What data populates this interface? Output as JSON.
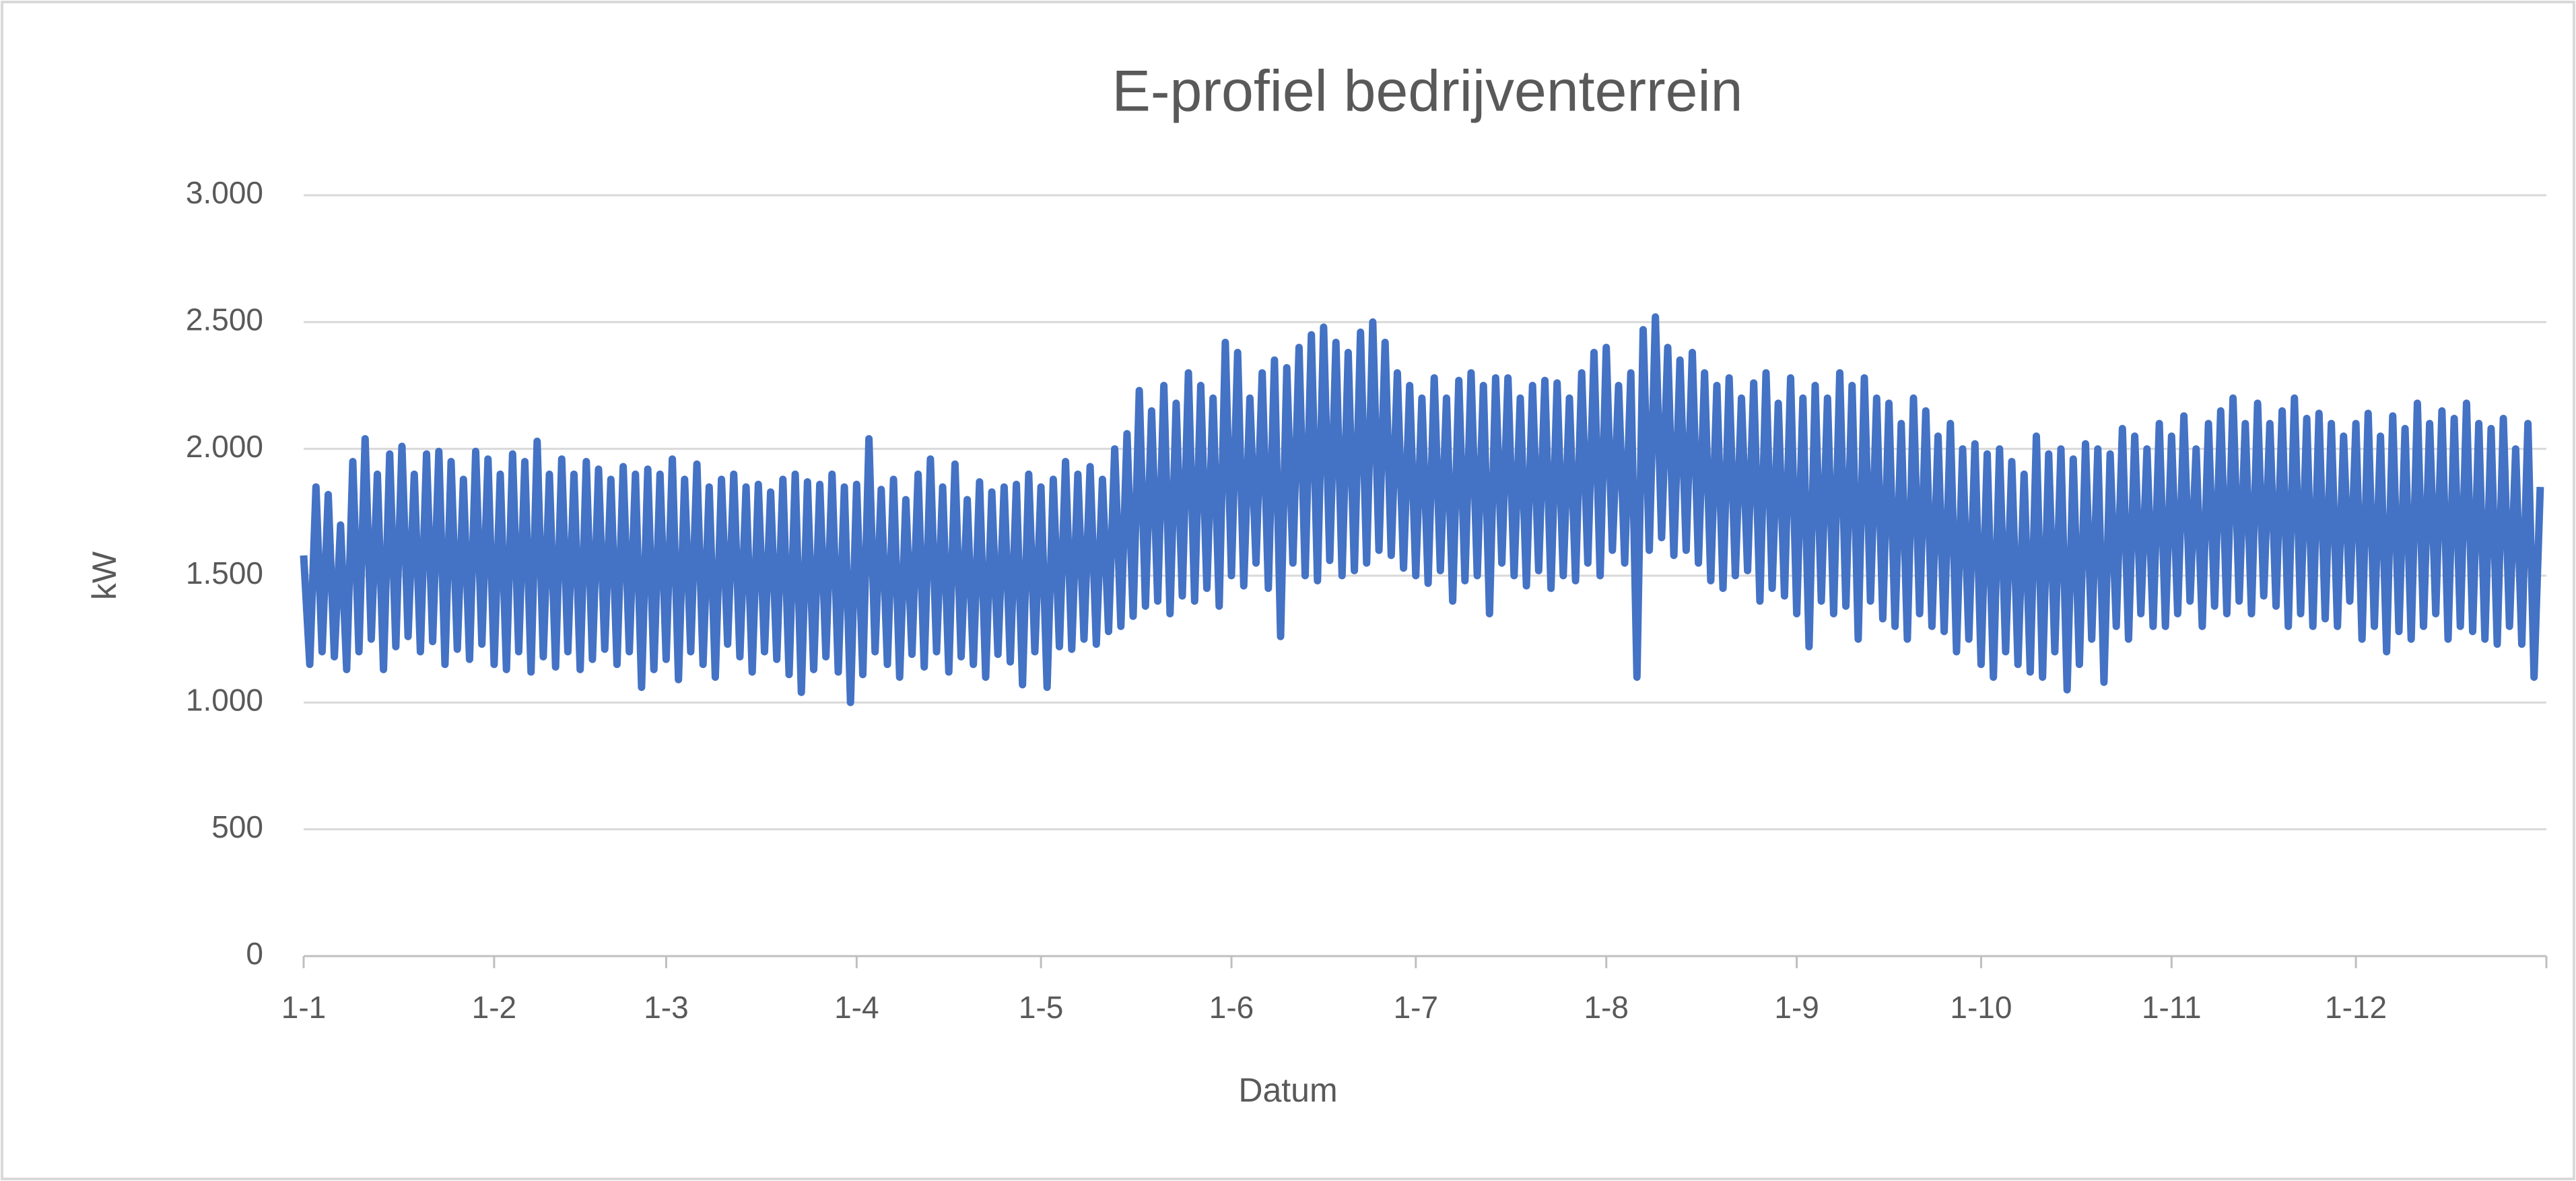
{
  "chart_data": {
    "type": "line",
    "title": "E-profiel bedrijventerrein",
    "x_label": "Datum",
    "y_label": "kW",
    "color": "#4472c4",
    "grid": true,
    "xlim": [
      0,
      365
    ],
    "xticks": [
      {
        "value": 0,
        "label": "1-1"
      },
      {
        "value": 31,
        "label": "1-2"
      },
      {
        "value": 59,
        "label": "1-3"
      },
      {
        "value": 90,
        "label": "1-4"
      },
      {
        "value": 120,
        "label": "1-5"
      },
      {
        "value": 151,
        "label": "1-6"
      },
      {
        "value": 181,
        "label": "1-7"
      },
      {
        "value": 212,
        "label": "1-8"
      },
      {
        "value": 243,
        "label": "1-9"
      },
      {
        "value": 273,
        "label": "1-10"
      },
      {
        "value": 304,
        "label": "1-11"
      },
      {
        "value": 334,
        "label": "1-12"
      }
    ],
    "ylim": [
      0,
      3000
    ],
    "yticks": [
      0,
      500,
      {
        "value": 1000,
        "label": "1.000"
      },
      {
        "value": 1500,
        "label": "1.500"
      },
      {
        "value": 2000,
        "label": "2.000"
      },
      {
        "value": 2500,
        "label": "2.500"
      },
      {
        "value": 3000,
        "label": "3.000"
      }
    ],
    "x": [
      0,
      1,
      2,
      3,
      4,
      5,
      6,
      7,
      8,
      9,
      10,
      11,
      12,
      13,
      14,
      15,
      16,
      17,
      18,
      19,
      20,
      21,
      22,
      23,
      24,
      25,
      26,
      27,
      28,
      29,
      30,
      31,
      32,
      33,
      34,
      35,
      36,
      37,
      38,
      39,
      40,
      41,
      42,
      43,
      44,
      45,
      46,
      47,
      48,
      49,
      50,
      51,
      52,
      53,
      54,
      55,
      56,
      57,
      58,
      59,
      60,
      61,
      62,
      63,
      64,
      65,
      66,
      67,
      68,
      69,
      70,
      71,
      72,
      73,
      74,
      75,
      76,
      77,
      78,
      79,
      80,
      81,
      82,
      83,
      84,
      85,
      86,
      87,
      88,
      89,
      90,
      91,
      92,
      93,
      94,
      95,
      96,
      97,
      98,
      99,
      100,
      101,
      102,
      103,
      104,
      105,
      106,
      107,
      108,
      109,
      110,
      111,
      112,
      113,
      114,
      115,
      116,
      117,
      118,
      119,
      120,
      121,
      122,
      123,
      124,
      125,
      126,
      127,
      128,
      129,
      130,
      131,
      132,
      133,
      134,
      135,
      136,
      137,
      138,
      139,
      140,
      141,
      142,
      143,
      144,
      145,
      146,
      147,
      148,
      149,
      150,
      151,
      152,
      153,
      154,
      155,
      156,
      157,
      158,
      159,
      160,
      161,
      162,
      163,
      164,
      165,
      166,
      167,
      168,
      169,
      170,
      171,
      172,
      173,
      174,
      175,
      176,
      177,
      178,
      179,
      180,
      181,
      182,
      183,
      184,
      185,
      186,
      187,
      188,
      189,
      190,
      191,
      192,
      193,
      194,
      195,
      196,
      197,
      198,
      199,
      200,
      201,
      202,
      203,
      204,
      205,
      206,
      207,
      208,
      209,
      210,
      211,
      212,
      213,
      214,
      215,
      216,
      217,
      218,
      219,
      220,
      221,
      222,
      223,
      224,
      225,
      226,
      227,
      228,
      229,
      230,
      231,
      232,
      233,
      234,
      235,
      236,
      237,
      238,
      239,
      240,
      241,
      242,
      243,
      244,
      245,
      246,
      247,
      248,
      249,
      250,
      251,
      252,
      253,
      254,
      255,
      256,
      257,
      258,
      259,
      260,
      261,
      262,
      263,
      264,
      265,
      266,
      267,
      268,
      269,
      270,
      271,
      272,
      273,
      274,
      275,
      276,
      277,
      278,
      279,
      280,
      281,
      282,
      283,
      284,
      285,
      286,
      287,
      288,
      289,
      290,
      291,
      292,
      293,
      294,
      295,
      296,
      297,
      298,
      299,
      300,
      301,
      302,
      303,
      304,
      305,
      306,
      307,
      308,
      309,
      310,
      311,
      312,
      313,
      314,
      315,
      316,
      317,
      318,
      319,
      320,
      321,
      322,
      323,
      324,
      325,
      326,
      327,
      328,
      329,
      330,
      331,
      332,
      333,
      334,
      335,
      336,
      337,
      338,
      339,
      340,
      341,
      342,
      343,
      344,
      345,
      346,
      347,
      348,
      349,
      350,
      351,
      352,
      353,
      354,
      355,
      356,
      357,
      358,
      359,
      360,
      361,
      362,
      363,
      364
    ],
    "values": [
      1580,
      1150,
      1850,
      1200,
      1820,
      1180,
      1700,
      1130,
      1950,
      1200,
      2040,
      1250,
      1900,
      1130,
      1980,
      1220,
      2010,
      1260,
      1900,
      1200,
      1980,
      1240,
      1990,
      1150,
      1950,
      1210,
      1880,
      1170,
      1990,
      1230,
      1960,
      1150,
      1900,
      1130,
      1980,
      1200,
      1950,
      1120,
      2030,
      1180,
      1900,
      1140,
      1960,
      1200,
      1900,
      1130,
      1950,
      1170,
      1920,
      1210,
      1880,
      1150,
      1930,
      1200,
      1900,
      1060,
      1920,
      1130,
      1900,
      1170,
      1960,
      1090,
      1880,
      1200,
      1940,
      1150,
      1850,
      1100,
      1880,
      1230,
      1900,
      1180,
      1850,
      1120,
      1860,
      1200,
      1830,
      1170,
      1880,
      1110,
      1900,
      1040,
      1870,
      1130,
      1860,
      1180,
      1900,
      1120,
      1850,
      1000,
      1860,
      1110,
      2040,
      1200,
      1840,
      1150,
      1880,
      1100,
      1800,
      1190,
      1900,
      1140,
      1960,
      1200,
      1850,
      1120,
      1940,
      1180,
      1800,
      1150,
      1870,
      1100,
      1830,
      1190,
      1850,
      1160,
      1860,
      1070,
      1900,
      1200,
      1850,
      1060,
      1880,
      1220,
      1950,
      1210,
      1900,
      1250,
      1930,
      1230,
      1880,
      1280,
      2000,
      1300,
      2060,
      1340,
      2230,
      1380,
      2150,
      1400,
      2250,
      1350,
      2180,
      1420,
      2300,
      1400,
      2250,
      1450,
      2200,
      1380,
      2420,
      1500,
      2380,
      1460,
      2200,
      1550,
      2300,
      1450,
      2350,
      1260,
      2320,
      1550,
      2400,
      1500,
      2450,
      1480,
      2480,
      1560,
      2420,
      1500,
      2380,
      1520,
      2460,
      1550,
      2500,
      1600,
      2420,
      1580,
      2300,
      1530,
      2250,
      1500,
      2200,
      1470,
      2280,
      1520,
      2200,
      1400,
      2270,
      1480,
      2300,
      1500,
      2250,
      1350,
      2280,
      1550,
      2280,
      1500,
      2200,
      1460,
      2250,
      1520,
      2270,
      1450,
      2260,
      1500,
      2200,
      1480,
      2300,
      1550,
      2380,
      1500,
      2400,
      1600,
      2250,
      1550,
      2300,
      1100,
      2470,
      1600,
      2520,
      1650,
      2400,
      1580,
      2350,
      1600,
      2380,
      1550,
      2300,
      1480,
      2250,
      1450,
      2280,
      1500,
      2200,
      1520,
      2260,
      1400,
      2300,
      1450,
      2180,
      1420,
      2280,
      1350,
      2200,
      1220,
      2250,
      1400,
      2200,
      1350,
      2300,
      1380,
      2250,
      1250,
      2280,
      1400,
      2200,
      1330,
      2180,
      1300,
      2100,
      1250,
      2200,
      1350,
      2150,
      1300,
      2050,
      1280,
      2100,
      1200,
      2000,
      1250,
      2020,
      1150,
      1980,
      1100,
      2000,
      1200,
      1950,
      1150,
      1900,
      1120,
      2050,
      1100,
      1980,
      1200,
      2000,
      1050,
      1960,
      1150,
      2020,
      1250,
      2000,
      1080,
      1980,
      1300,
      2080,
      1250,
      2050,
      1350,
      2000,
      1300,
      2100,
      1300,
      2050,
      1350,
      2130,
      1400,
      2000,
      1300,
      2100,
      1380,
      2150,
      1350,
      2200,
      1400,
      2100,
      1350,
      2180,
      1420,
      2100,
      1380,
      2150,
      1300,
      2200,
      1350,
      2120,
      1300,
      2140,
      1330,
      2100,
      1300,
      2050,
      1400,
      2100,
      1250,
      2140,
      1300,
      2050,
      1200,
      2130,
      1280,
      2080,
      1250,
      2180,
      1300,
      2100,
      1350,
      2150,
      1250,
      2120,
      1300,
      2180,
      1280,
      2100,
      1250,
      2080,
      1230,
      2120,
      1300,
      2000,
      1230,
      2100,
      1100,
      1850
    ]
  }
}
